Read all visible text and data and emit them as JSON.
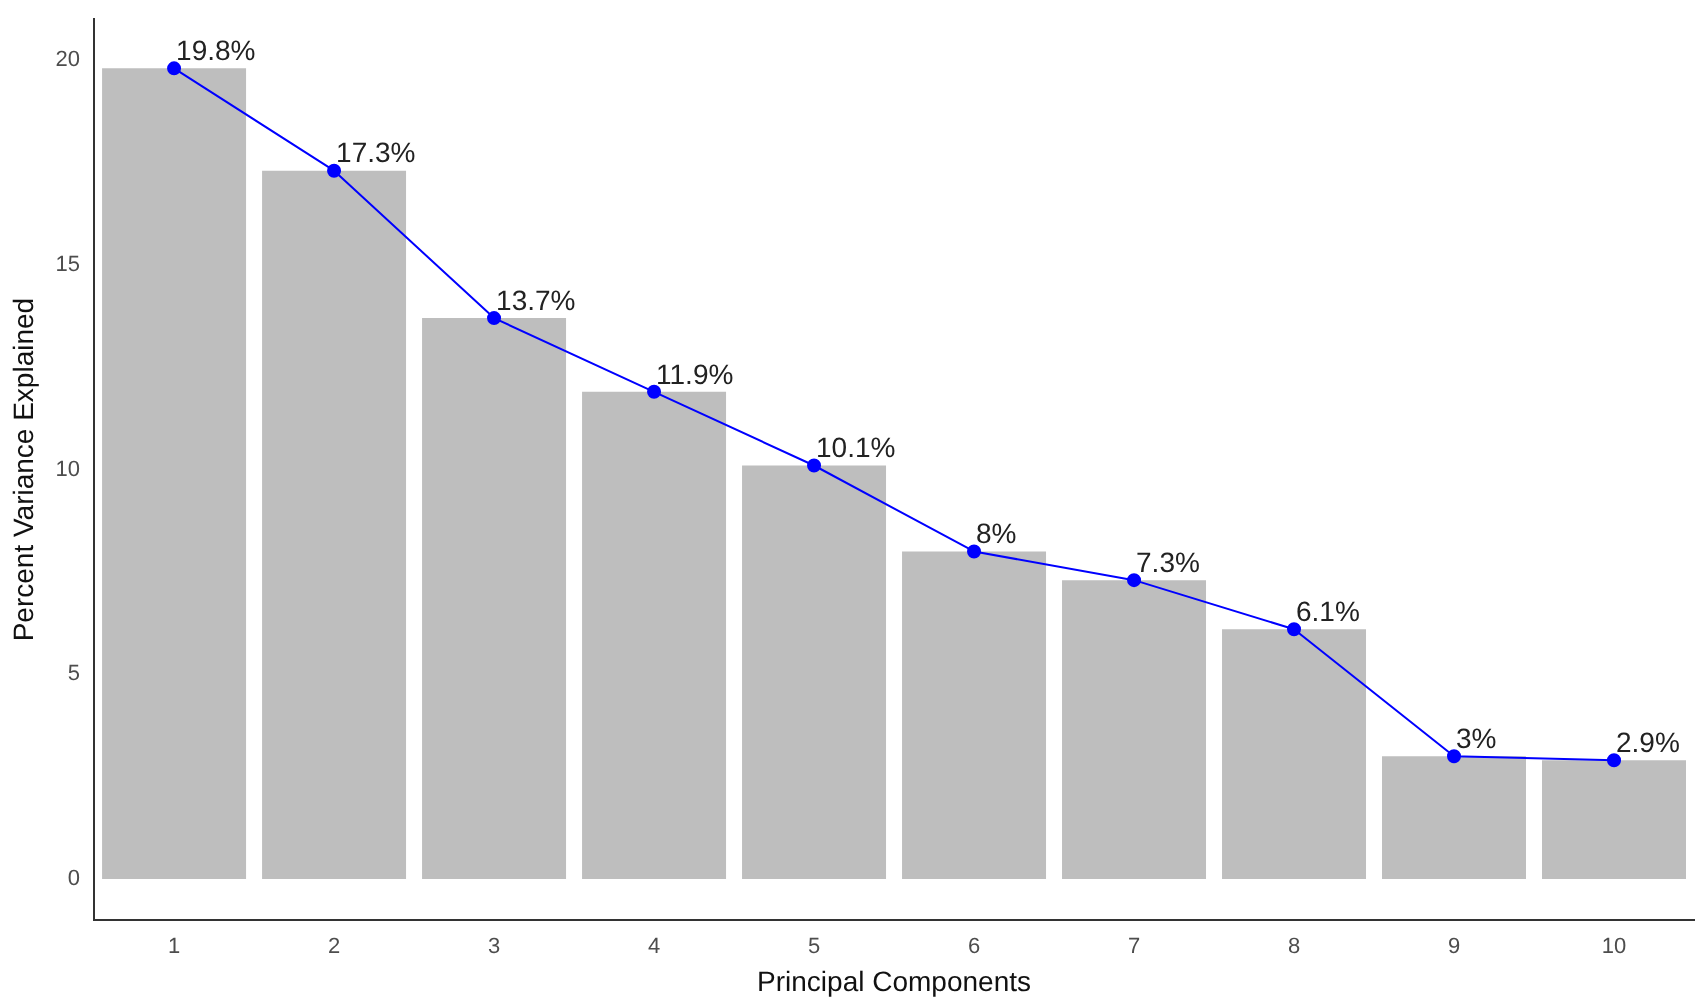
{
  "chart_data": {
    "type": "bar",
    "xlabel": "Principal Components",
    "ylabel": "Percent Variance Explained",
    "categories": [
      "1",
      "2",
      "3",
      "4",
      "5",
      "6",
      "7",
      "8",
      "9",
      "10"
    ],
    "series": [
      {
        "color": "#bebebe",
        "values": [
          19.8,
          17.3,
          13.7,
          11.9,
          10.1,
          8,
          7.3,
          6.1,
          3,
          2.9
        ]
      },
      {
        "type": "line",
        "color": "#0000ff",
        "marker": "circle",
        "line_style": "solid",
        "values": [
          19.8,
          17.3,
          13.7,
          11.9,
          10.1,
          8,
          7.3,
          6.1,
          3,
          2.9
        ],
        "value_labels": [
          "19.8%",
          "17.3%",
          "13.7%",
          "11.9%",
          "10.1%",
          "8%",
          "7.3%",
          "6.1%",
          "3%",
          "2.9%"
        ]
      }
    ],
    "ylim": [
      -1,
      21
    ],
    "yticks": [
      0,
      5,
      10,
      15,
      20
    ],
    "grid": false,
    "legend": false
  }
}
